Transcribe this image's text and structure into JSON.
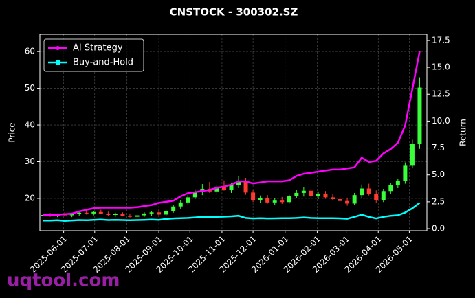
{
  "chart_data": {
    "type": "candlestick",
    "title": "CNSTOCK - 300302.SZ",
    "ylabel": "Price",
    "y2label": "Return",
    "watermark": "uqtool.com",
    "up_color": "#39ff3a",
    "down_color": "#ff3b30",
    "grid": true,
    "legend": "upper left",
    "x": [
      "2025-05-12",
      "2025-05-19",
      "2025-05-26",
      "2025-06-02",
      "2025-06-09",
      "2025-06-16",
      "2025-06-23",
      "2025-06-30",
      "2025-07-07",
      "2025-07-14",
      "2025-07-21",
      "2025-07-28",
      "2025-08-04",
      "2025-08-11",
      "2025-08-18",
      "2025-08-25",
      "2025-09-01",
      "2025-09-08",
      "2025-09-15",
      "2025-09-22",
      "2025-09-29",
      "2025-10-06",
      "2025-10-13",
      "2025-10-20",
      "2025-10-27",
      "2025-11-03",
      "2025-11-10",
      "2025-11-17",
      "2025-11-24",
      "2025-12-01",
      "2025-12-08",
      "2025-12-15",
      "2025-12-22",
      "2025-12-29",
      "2026-01-05",
      "2026-01-12",
      "2026-01-19",
      "2026-01-26",
      "2026-02-02",
      "2026-02-09",
      "2026-02-16",
      "2026-02-23",
      "2026-03-02",
      "2026-03-09",
      "2026-03-16",
      "2026-03-23",
      "2026-03-30",
      "2026-04-06",
      "2026-04-13",
      "2026-04-20",
      "2026-04-27",
      "2026-05-04",
      "2026-05-11"
    ],
    "open": [
      15.2,
      15.5,
      15.3,
      15.6,
      15.4,
      15.8,
      16.1,
      15.9,
      16.3,
      15.8,
      15.5,
      15.7,
      15.3,
      15.0,
      15.4,
      15.9,
      16.2,
      15.6,
      16.5,
      17.8,
      18.9,
      20.3,
      21.8,
      22.6,
      21.9,
      23.2,
      22.4,
      23.6,
      24.8,
      21.6,
      19.5,
      20.1,
      18.9,
      19.4,
      19.0,
      20.6,
      21.5,
      22.1,
      20.6,
      21.2,
      20.3,
      19.8,
      19.3,
      18.6,
      20.9,
      22.7,
      21.3,
      19.5,
      22.0,
      23.6,
      24.7,
      28.9,
      34.8
    ],
    "high": [
      15.8,
      16.0,
      15.9,
      16.2,
      16.0,
      16.5,
      16.8,
      16.6,
      16.9,
      16.4,
      16.1,
      16.2,
      15.9,
      15.8,
      16.2,
      16.6,
      17.0,
      16.8,
      18.2,
      19.5,
      21.0,
      22.5,
      23.9,
      24.5,
      23.8,
      24.9,
      24.2,
      26.0,
      25.6,
      22.2,
      20.8,
      20.9,
      20.0,
      20.4,
      21.0,
      22.4,
      23.0,
      22.8,
      21.9,
      22.0,
      21.2,
      20.6,
      20.2,
      21.5,
      23.8,
      24.0,
      22.2,
      22.6,
      24.2,
      25.3,
      29.8,
      36.0,
      53.0
    ],
    "low": [
      14.8,
      15.0,
      14.9,
      15.1,
      14.9,
      15.3,
      15.6,
      15.4,
      15.7,
      15.2,
      15.0,
      15.1,
      14.8,
      14.6,
      15.0,
      15.3,
      15.0,
      15.2,
      16.1,
      17.2,
      18.4,
      19.8,
      20.9,
      21.5,
      21.0,
      22.1,
      21.5,
      22.8,
      21.0,
      19.0,
      18.7,
      18.6,
      18.3,
      18.5,
      18.6,
      20.0,
      20.5,
      20.2,
      19.8,
      19.9,
      19.4,
      18.8,
      18.0,
      18.2,
      20.2,
      20.8,
      18.8,
      19.0,
      21.3,
      22.8,
      24.0,
      28.2,
      33.5
    ],
    "close": [
      15.5,
      15.3,
      15.6,
      15.4,
      15.8,
      16.1,
      15.9,
      16.3,
      15.8,
      15.5,
      15.7,
      15.3,
      15.0,
      15.4,
      15.9,
      16.2,
      15.6,
      16.5,
      17.8,
      18.9,
      20.3,
      21.8,
      22.6,
      21.9,
      23.2,
      22.4,
      23.6,
      24.8,
      21.6,
      19.5,
      20.1,
      18.9,
      19.4,
      19.0,
      20.6,
      21.5,
      22.1,
      20.6,
      21.2,
      20.3,
      19.8,
      19.3,
      18.6,
      20.9,
      22.7,
      21.3,
      19.5,
      22.0,
      23.6,
      24.7,
      28.9,
      34.8,
      50.2
    ],
    "series": [
      {
        "name": "AI Strategy",
        "color": "#ff00ff",
        "axis": "y2",
        "values": [
          1.3,
          1.3,
          1.3,
          1.35,
          1.4,
          1.6,
          1.75,
          1.9,
          1.95,
          1.95,
          1.95,
          1.95,
          1.95,
          2.0,
          2.1,
          2.2,
          2.4,
          2.5,
          2.6,
          3.0,
          3.3,
          3.4,
          3.5,
          3.6,
          3.8,
          3.9,
          4.1,
          4.4,
          4.4,
          4.2,
          4.3,
          4.4,
          4.4,
          4.4,
          4.5,
          4.9,
          5.1,
          5.2,
          5.3,
          5.4,
          5.5,
          5.5,
          5.6,
          5.7,
          6.6,
          6.2,
          6.3,
          7.0,
          7.4,
          8.0,
          9.6,
          13.0,
          16.5
        ]
      },
      {
        "name": "Buy-and-Hold",
        "color": "#00ffff",
        "axis": "y2",
        "values": [
          0.75,
          0.75,
          0.78,
          0.72,
          0.76,
          0.8,
          0.78,
          0.82,
          0.85,
          0.8,
          0.82,
          0.8,
          0.78,
          0.8,
          0.82,
          0.85,
          0.82,
          0.9,
          0.95,
          0.98,
          1.0,
          1.05,
          1.1,
          1.08,
          1.1,
          1.12,
          1.15,
          1.2,
          1.0,
          0.95,
          0.98,
          0.95,
          0.96,
          0.97,
          0.98,
          1.0,
          1.05,
          1.0,
          0.98,
          0.98,
          0.97,
          0.96,
          0.92,
          1.1,
          1.3,
          1.1,
          0.95,
          1.1,
          1.2,
          1.25,
          1.5,
          1.9,
          2.4
        ]
      }
    ],
    "xlim": [
      "2025-05-09",
      "2026-05-18"
    ],
    "xticks": [
      "2025-06-01",
      "2025-07-01",
      "2025-08-01",
      "2025-09-01",
      "2025-10-01",
      "2025-11-01",
      "2025-12-01",
      "2026-01-01",
      "2026-02-01",
      "2026-03-01",
      "2026-04-01",
      "2026-05-01"
    ],
    "ylim": [
      11.2,
      64.7
    ],
    "yticks": [
      20,
      30,
      40,
      50,
      60
    ],
    "y2lim": [
      -0.19,
      18.07
    ],
    "y2ticks": [
      {
        "value": 0,
        "label": "0.0"
      },
      2.5,
      {
        "value": 5,
        "label": "5.0"
      },
      7.5,
      {
        "value": 10,
        "label": "10.0"
      },
      12.5,
      {
        "value": 15,
        "label": "15.0"
      },
      17.5
    ]
  }
}
